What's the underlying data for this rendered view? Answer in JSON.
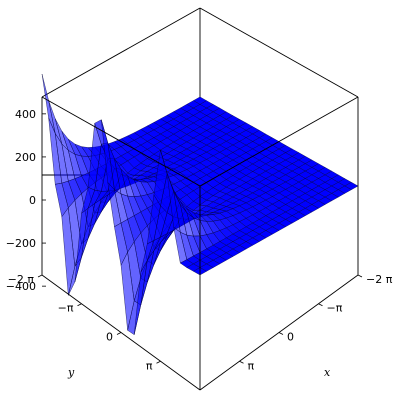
{
  "chart_data": {
    "type": "surface3d",
    "title": "",
    "xlabel": "x",
    "ylabel": "y",
    "zlabel": "",
    "surface_color": "#0000ff",
    "mesh_color": "#000033",
    "x_range": [
      -6.283,
      6.283
    ],
    "y_range": [
      -6.283,
      6.283
    ],
    "z_range": [
      -520,
      520
    ],
    "z_ticks": [
      {
        "value": 400,
        "label": "400"
      },
      {
        "value": 200,
        "label": "200"
      },
      {
        "value": 0,
        "label": "0"
      },
      {
        "value": -200,
        "label": "−200"
      },
      {
        "value": -400,
        "label": "−400"
      }
    ],
    "x_ticks": [
      {
        "value": -6.283,
        "label": "−2 π"
      },
      {
        "value": -3.1416,
        "label": "−π"
      },
      {
        "value": 0,
        "label": "0"
      },
      {
        "value": 3.1416,
        "label": "π"
      }
    ],
    "y_ticks": [
      {
        "value": -6.283,
        "label": "−2 π"
      },
      {
        "value": -3.1416,
        "label": "−π"
      },
      {
        "value": 0,
        "label": "0"
      },
      {
        "value": 3.1416,
        "label": "π"
      }
    ],
    "edge_profile_along_y_at_x_min": [
      {
        "y": -6.283,
        "z": 520
      },
      {
        "y": -5.0,
        "z": 0
      },
      {
        "y": -4.0,
        "z": -480
      },
      {
        "y": -3.0,
        "z": 0
      },
      {
        "y": -1.8,
        "z": 500
      },
      {
        "y": -0.5,
        "z": 0
      },
      {
        "y": 0.8,
        "z": -500
      },
      {
        "y": 2.0,
        "z": 0
      },
      {
        "y": 3.2,
        "z": 480
      },
      {
        "y": 4.8,
        "z": 0
      },
      {
        "y": 6.283,
        "z": 0
      }
    ]
  }
}
